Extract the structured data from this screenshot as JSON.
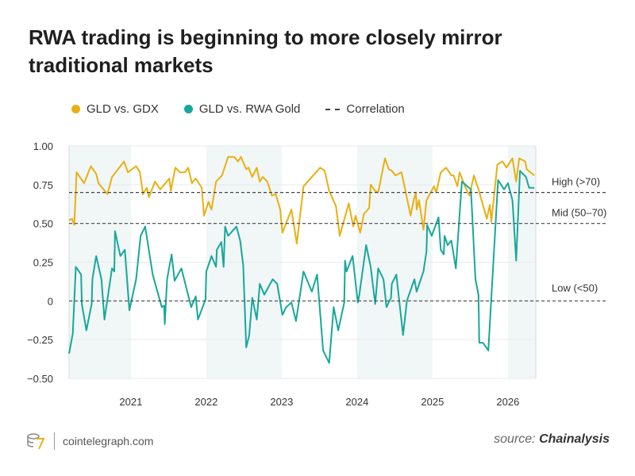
{
  "title": "RWA trading is beginning to more closely mirror traditional markets",
  "footer": {
    "site": "cointelegraph.com",
    "source_prefix": "source:",
    "source_name": "Chainalysis"
  },
  "chart_data": {
    "type": "line",
    "title": "RWA trading is beginning to more closely mirror traditional markets",
    "xlabel": "",
    "ylabel": "",
    "xlim": [
      2020.18,
      2026.37
    ],
    "ylim": [
      -0.5,
      1.0
    ],
    "x_ticks": [
      2021,
      2022,
      2023,
      2024,
      2025,
      2026
    ],
    "x_tick_labels": [
      "2021",
      "2022",
      "2023",
      "2024",
      "2025",
      "2026"
    ],
    "y_ticks": [
      1.0,
      0.75,
      0.5,
      0.25,
      0,
      -0.25,
      -0.5
    ],
    "y_tick_labels": [
      "1.00",
      "0.75",
      "0.50",
      "0.25",
      "0",
      "−0.25",
      "−0.50"
    ],
    "grid": true,
    "legend_placement": "top",
    "shaded_years": [
      [
        2020.18,
        2021
      ],
      [
        2022,
        2023
      ],
      [
        2024,
        2025
      ],
      [
        2026,
        2026.37
      ]
    ],
    "reference_lines": [
      {
        "value": 0.7,
        "label": "High (>70)"
      },
      {
        "value": 0.5,
        "label": "Mid (50–70)"
      },
      {
        "value": 0,
        "label": "Low (<50)"
      }
    ],
    "legend": [
      {
        "name": "GLD vs. GDX",
        "color": "#E8B012",
        "kind": "dot"
      },
      {
        "name": "GLD vs. RWA Gold",
        "color": "#17A89A",
        "kind": "dot"
      },
      {
        "name": "Correlation",
        "color": "#444444",
        "kind": "dash"
      }
    ],
    "series": [
      {
        "name": "GLD vs. GDX",
        "color": "#E8B012",
        "x": [
          2020.18,
          2020.22,
          2020.25,
          2020.28,
          2020.38,
          2020.47,
          2020.54,
          2020.57,
          2020.69,
          2020.75,
          2020.91,
          2020.96,
          2021.07,
          2021.12,
          2021.16,
          2021.21,
          2021.24,
          2021.32,
          2021.39,
          2021.51,
          2021.53,
          2021.59,
          2021.65,
          2021.72,
          2021.76,
          2021.81,
          2021.86,
          2021.94,
          2021.97,
          2022.03,
          2022.07,
          2022.13,
          2022.21,
          2022.29,
          2022.37,
          2022.42,
          2022.46,
          2022.53,
          2022.56,
          2022.61,
          2022.67,
          2022.71,
          2022.75,
          2022.81,
          2022.87,
          2022.92,
          2022.98,
          2023.01,
          2023.13,
          2023.2,
          2023.29,
          2023.51,
          2023.57,
          2023.63,
          2023.72,
          2023.77,
          2023.89,
          2023.95,
          2023.98,
          2024.04,
          2024.09,
          2024.16,
          2024.18,
          2024.24,
          2024.28,
          2024.37,
          2024.42,
          2024.46,
          2024.51,
          2024.59,
          2024.71,
          2024.75,
          2024.78,
          2024.79,
          2024.82,
          2024.88,
          2024.92,
          2025.02,
          2025.05,
          2025.11,
          2025.18,
          2025.25,
          2025.28,
          2025.33,
          2025.36,
          2025.43,
          2025.49,
          2025.55,
          2025.61,
          2025.72,
          2025.76,
          2025.78,
          2025.86,
          2025.93,
          2025.98,
          2026.06,
          2026.11,
          2026.15,
          2026.23,
          2026.25,
          2026.35
        ],
        "y": [
          0.52,
          0.53,
          0.49,
          0.83,
          0.76,
          0.87,
          0.82,
          0.76,
          0.69,
          0.8,
          0.9,
          0.83,
          0.87,
          0.83,
          0.69,
          0.73,
          0.67,
          0.77,
          0.72,
          0.79,
          0.71,
          0.86,
          0.83,
          0.83,
          0.86,
          0.76,
          0.79,
          0.73,
          0.55,
          0.64,
          0.59,
          0.77,
          0.81,
          0.93,
          0.93,
          0.9,
          0.93,
          0.85,
          0.86,
          0.8,
          0.86,
          0.77,
          0.8,
          0.77,
          0.68,
          0.69,
          0.59,
          0.44,
          0.59,
          0.37,
          0.74,
          0.86,
          0.84,
          0.71,
          0.61,
          0.42,
          0.63,
          0.48,
          0.55,
          0.44,
          0.56,
          0.6,
          0.75,
          0.71,
          0.7,
          0.92,
          0.85,
          0.84,
          0.81,
          0.83,
          0.55,
          0.65,
          0.7,
          0.59,
          0.65,
          0.46,
          0.65,
          0.74,
          0.7,
          0.83,
          0.86,
          0.81,
          0.81,
          0.74,
          0.83,
          0.74,
          0.68,
          0.81,
          0.72,
          0.53,
          0.62,
          0.51,
          0.88,
          0.9,
          0.86,
          0.92,
          0.77,
          0.92,
          0.9,
          0.85,
          0.81
        ]
      },
      {
        "name": "GLD vs. RWA Gold",
        "color": "#17A89A",
        "x": [
          2020.18,
          2020.23,
          2020.27,
          2020.34,
          2020.35,
          2020.41,
          2020.48,
          2020.49,
          2020.54,
          2020.61,
          2020.65,
          2020.75,
          2020.78,
          2020.79,
          2020.86,
          2020.92,
          2020.98,
          2021.07,
          2021.13,
          2021.19,
          2021.29,
          2021.41,
          2021.44,
          2021.45,
          2021.48,
          2021.54,
          2021.58,
          2021.67,
          2021.8,
          2021.86,
          2021.89,
          2021.99,
          2022.0,
          2022.07,
          2022.13,
          2022.14,
          2022.2,
          2022.23,
          2022.25,
          2022.29,
          2022.4,
          2022.45,
          2022.49,
          2022.53,
          2022.57,
          2022.61,
          2022.67,
          2022.71,
          2022.77,
          2022.88,
          2022.94,
          2023.01,
          2023.06,
          2023.13,
          2023.19,
          2023.29,
          2023.4,
          2023.47,
          2023.55,
          2023.63,
          2023.69,
          2023.75,
          2023.83,
          2023.84,
          2023.86,
          2023.94,
          2024.01,
          2024.03,
          2024.12,
          2024.18,
          2024.24,
          2024.28,
          2024.35,
          2024.39,
          2024.45,
          2024.46,
          2024.52,
          2024.61,
          2024.66,
          2024.76,
          2024.79,
          2024.88,
          2024.92,
          2024.93,
          2024.99,
          2025.08,
          2025.11,
          2025.15,
          2025.16,
          2025.2,
          2025.25,
          2025.31,
          2025.39,
          2025.51,
          2025.57,
          2025.61,
          2025.62,
          2025.67,
          2025.74,
          2025.87,
          2025.95,
          2026.0,
          2026.06,
          2026.11,
          2026.16,
          2026.24,
          2026.28,
          2026.35
        ],
        "y": [
          -0.34,
          -0.21,
          0.22,
          0.17,
          -0.02,
          -0.19,
          -0.02,
          0.14,
          0.29,
          0.14,
          -0.12,
          0.21,
          0.19,
          0.45,
          0.29,
          0.33,
          -0.06,
          0.14,
          0.42,
          0.48,
          0.17,
          -0.04,
          -0.03,
          -0.15,
          0.14,
          0.3,
          0.13,
          0.21,
          -0.04,
          0.03,
          -0.12,
          0.01,
          0.19,
          0.29,
          0.22,
          0.33,
          0.38,
          0.22,
          0.48,
          0.42,
          0.48,
          0.39,
          0.23,
          -0.3,
          -0.22,
          0.02,
          -0.12,
          0.11,
          0.04,
          0.14,
          0.11,
          -0.09,
          -0.04,
          -0.01,
          -0.13,
          0.19,
          0.06,
          0.17,
          -0.32,
          -0.4,
          -0.04,
          -0.19,
          -0.01,
          0.26,
          0.19,
          0.29,
          -0.01,
          0.04,
          0.36,
          0.22,
          -0.02,
          0.21,
          0.14,
          -0.04,
          0.02,
          0.11,
          0.17,
          -0.22,
          0.0,
          0.14,
          0.06,
          0.19,
          0.32,
          0.49,
          0.42,
          0.54,
          0.33,
          0.3,
          0.42,
          0.36,
          0.39,
          0.21,
          0.77,
          0.72,
          0.14,
          0.04,
          -0.27,
          -0.27,
          -0.32,
          0.78,
          0.72,
          0.76,
          0.65,
          0.26,
          0.84,
          0.8,
          0.73,
          0.73
        ]
      }
    ]
  }
}
